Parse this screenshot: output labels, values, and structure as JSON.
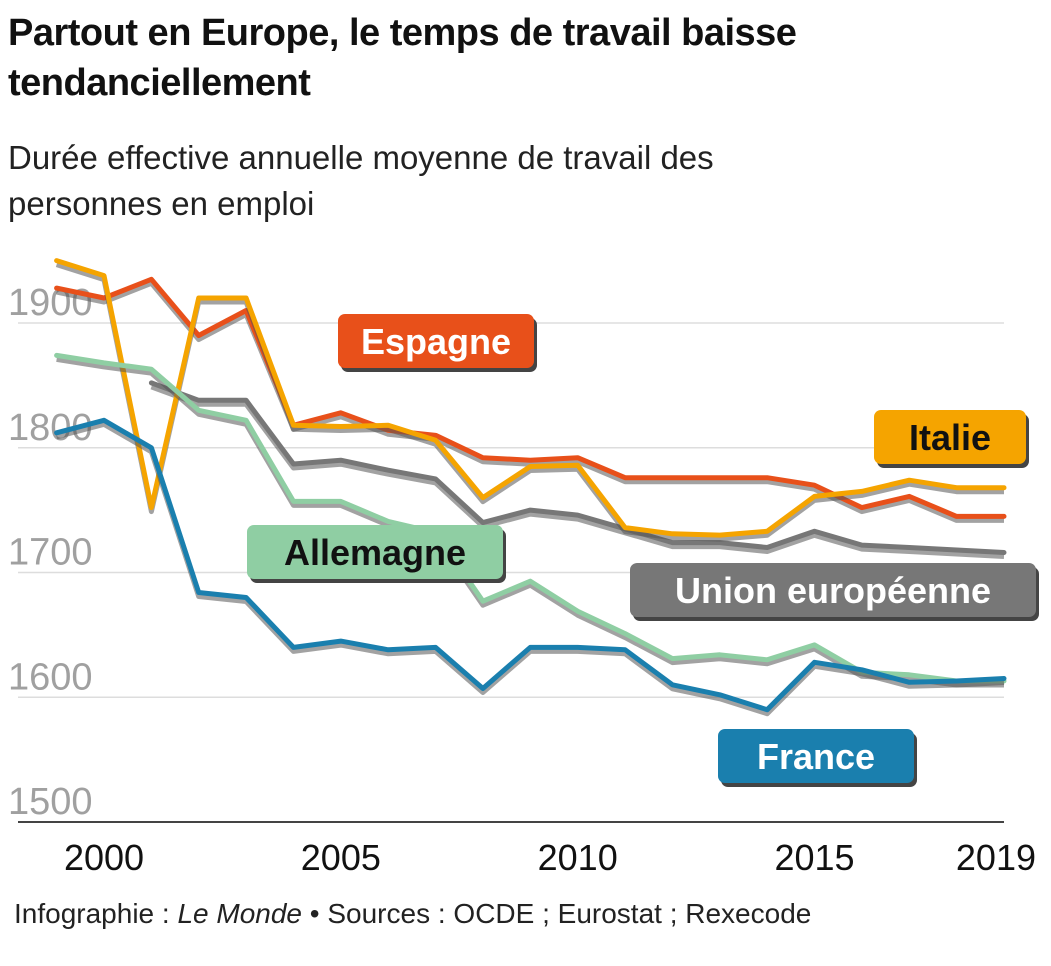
{
  "title": "Partout en Europe, le temps de travail baisse tendanciellement",
  "subtitle": "Durée effective annuelle moyenne de travail des personnes en emploi",
  "footer": {
    "credit_prefix": "Infographie : ",
    "credit_name": "Le Monde",
    "sources": "• Sources : OCDE ; Eurostat ; Rexecode"
  },
  "chart_data": {
    "type": "line",
    "title": "Partout en Europe, le temps de travail baisse tendanciellement",
    "subtitle": "Durée effective annuelle moyenne de travail des personnes en emploi",
    "xlabel": "",
    "ylabel": "",
    "xlim": [
      1999,
      2019
    ],
    "ylim": [
      1500,
      1960
    ],
    "x_ticks": [
      2000,
      2005,
      2010,
      2015,
      2019
    ],
    "y_ticks": [
      1500,
      1600,
      1700,
      1800,
      1900
    ],
    "grid": true,
    "series": [
      {
        "name": "Union européenne",
        "color": "#777777",
        "x": [
          2001,
          2002,
          2003,
          2004,
          2005,
          2006,
          2007,
          2008,
          2009,
          2010,
          2011,
          2012,
          2013,
          2014,
          2015,
          2016,
          2017,
          2018,
          2019
        ],
        "y": [
          1852,
          1838,
          1838,
          1787,
          1790,
          1782,
          1775,
          1740,
          1750,
          1746,
          1735,
          1724,
          1724,
          1720,
          1733,
          1722,
          1720,
          1718,
          1716
        ]
      },
      {
        "name": "Espagne",
        "color": "#e8501a",
        "x": [
          1999,
          2000,
          2001,
          2002,
          2003,
          2004,
          2005,
          2006,
          2007,
          2008,
          2009,
          2010,
          2011,
          2012,
          2013,
          2014,
          2015,
          2016,
          2017,
          2018,
          2019
        ],
        "y": [
          1928,
          1920,
          1935,
          1890,
          1910,
          1818,
          1828,
          1814,
          1810,
          1792,
          1790,
          1792,
          1776,
          1776,
          1776,
          1776,
          1770,
          1752,
          1761,
          1745,
          1745
        ]
      },
      {
        "name": "Italie",
        "color": "#f5a400",
        "x": [
          1999,
          2000,
          2001,
          2002,
          2003,
          2004,
          2005,
          2006,
          2007,
          2008,
          2009,
          2010,
          2011,
          2012,
          2013,
          2014,
          2015,
          2016,
          2017,
          2018,
          2019
        ],
        "y": [
          1950,
          1938,
          1752,
          1920,
          1920,
          1818,
          1817,
          1818,
          1806,
          1760,
          1785,
          1786,
          1736,
          1731,
          1730,
          1733,
          1761,
          1765,
          1774,
          1768,
          1768
        ]
      },
      {
        "name": "Allemagne",
        "color": "#8fcea3",
        "x": [
          1999,
          2000,
          2001,
          2002,
          2003,
          2004,
          2005,
          2006,
          2007,
          2008,
          2009,
          2010,
          2011,
          2012,
          2013,
          2014,
          2015,
          2016,
          2017,
          2018,
          2019
        ],
        "y": [
          1874,
          1868,
          1863,
          1830,
          1822,
          1757,
          1757,
          1741,
          1732,
          1677,
          1693,
          1669,
          1651,
          1631,
          1634,
          1630,
          1642,
          1620,
          1618,
          1613,
          1613
        ]
      },
      {
        "name": "France",
        "color": "#1a7fae",
        "x": [
          1999,
          2000,
          2001,
          2002,
          2003,
          2004,
          2005,
          2006,
          2007,
          2008,
          2009,
          2010,
          2011,
          2012,
          2013,
          2014,
          2015,
          2016,
          2017,
          2018,
          2019
        ],
        "y": [
          1812,
          1822,
          1800,
          1684,
          1680,
          1640,
          1645,
          1638,
          1640,
          1607,
          1640,
          1640,
          1638,
          1610,
          1602,
          1590,
          1628,
          1622,
          1612,
          1613,
          1615
        ]
      }
    ]
  }
}
